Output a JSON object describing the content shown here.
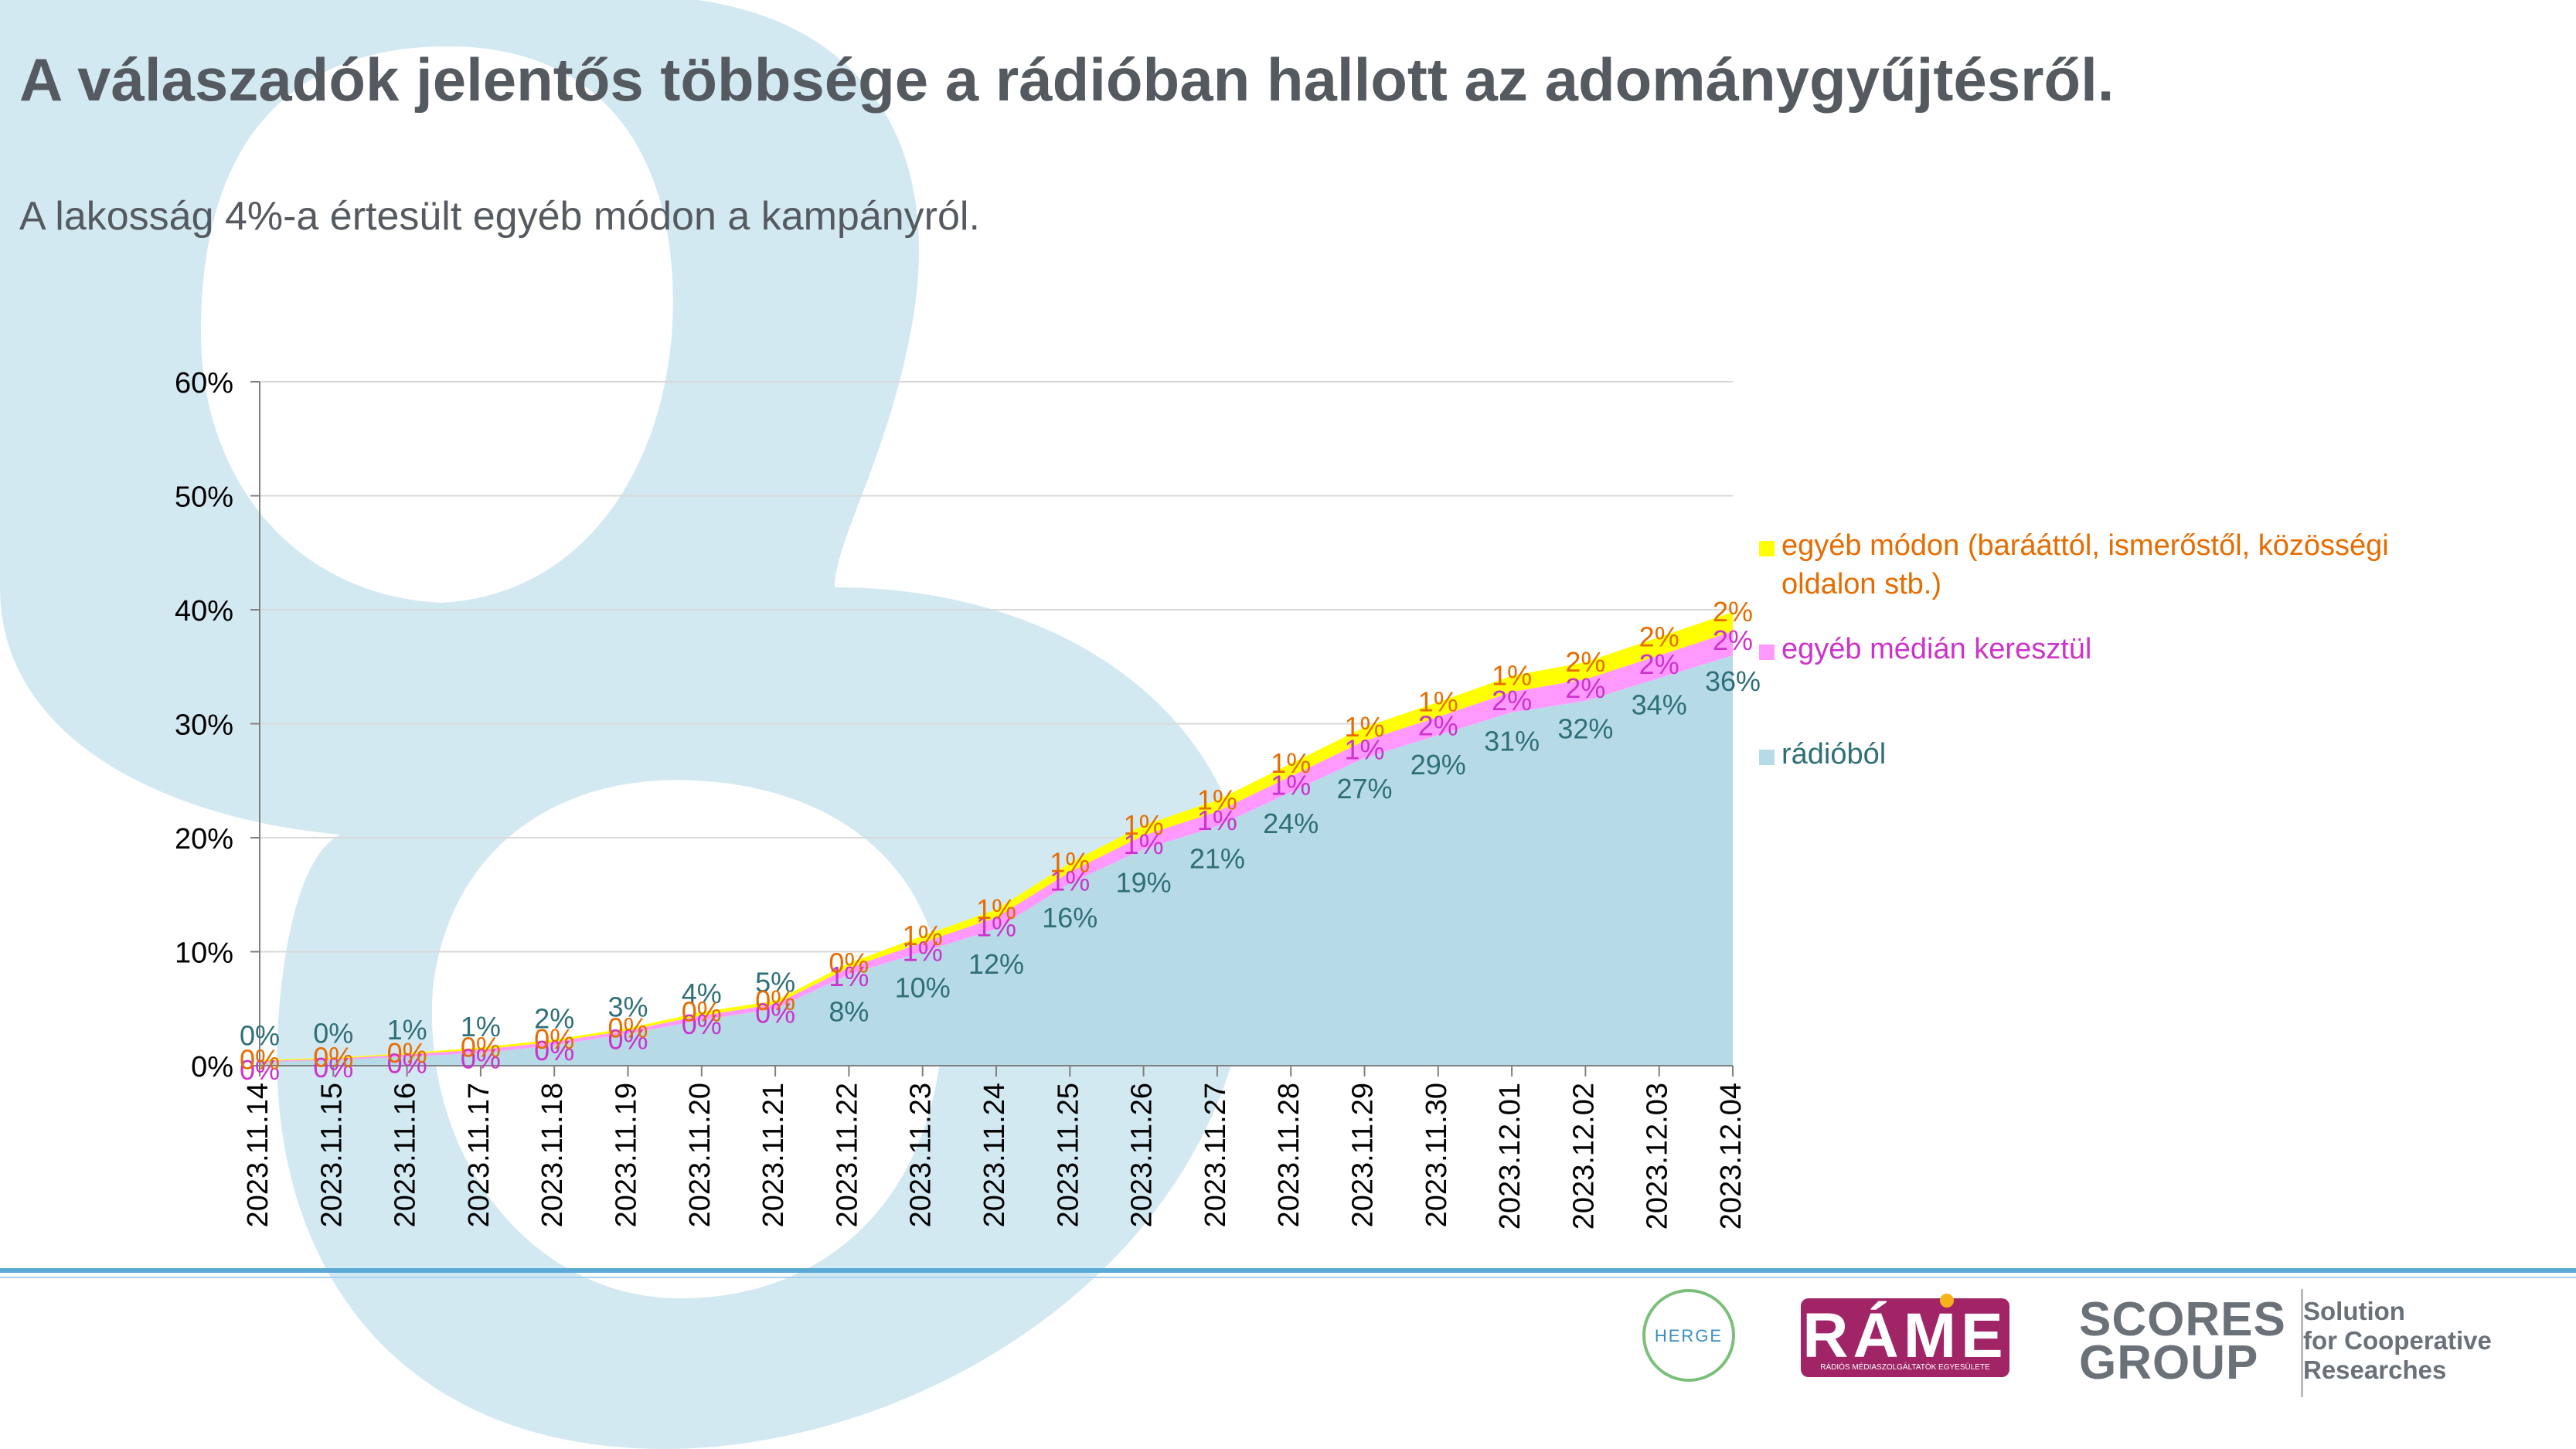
{
  "title": "A válaszadók jelentős többsége a rádióban hallott az adománygyűjtésről.",
  "subtitle": "A lakosság 4%-a értesült egyéb módon a kampányról.",
  "colors": {
    "radio": "#b6dbe6",
    "media": "#ff99ff",
    "other": "#ffff00",
    "bg_shape": "#d3e9f2",
    "grid": "#d9d9d9",
    "axis": "#7f7f7f",
    "radio_label": "#2f6f78",
    "media_label": "#cc33cc",
    "other_label": "#e66c00"
  },
  "chart_data": {
    "type": "area",
    "stacked": true,
    "x": [
      "2023.11.14",
      "2023.11.15",
      "2023.11.16",
      "2023.11.17",
      "2023.11.18",
      "2023.11.19",
      "2023.11.20",
      "2023.11.21",
      "2023.11.22",
      "2023.11.23",
      "2023.11.24",
      "2023.11.25",
      "2023.11.26",
      "2023.11.27",
      "2023.11.28",
      "2023.11.29",
      "2023.11.30",
      "2023.12.01",
      "2023.12.02",
      "2023.12.03",
      "2023.12.04"
    ],
    "y_ticks": [
      "0%",
      "10%",
      "20%",
      "30%",
      "40%",
      "50%",
      "60%"
    ],
    "ylim": [
      0,
      60
    ],
    "grid": true,
    "legend_position": "right",
    "series": [
      {
        "name": "rádióból",
        "key": "radio",
        "values": [
          0.3,
          0.5,
          0.8,
          1.1,
          1.8,
          2.8,
          4,
          5,
          8,
          10,
          12,
          16,
          19,
          21,
          24,
          27,
          29,
          31,
          32,
          34,
          36
        ],
        "labels": [
          "0%",
          "0%",
          "1%",
          "1%",
          "2%",
          "3%",
          "4%",
          "5%",
          "8%",
          "10%",
          "12%",
          "16%",
          "19%",
          "21%",
          "24%",
          "27%",
          "29%",
          "31%",
          "32%",
          "34%",
          "36%"
        ]
      },
      {
        "name": "egyéb médián keresztül",
        "key": "media",
        "values": [
          0.1,
          0.1,
          0.2,
          0.3,
          0.3,
          0.3,
          0.4,
          0.4,
          0.6,
          0.8,
          1,
          1,
          1.2,
          1.3,
          1.4,
          1.5,
          1.6,
          1.8,
          1.9,
          2,
          2.1
        ],
        "labels": [
          "0%",
          "0%",
          "0%",
          "0%",
          "0%",
          "0%",
          "0%",
          "0%",
          "1%",
          "1%",
          "1%",
          "1%",
          "1%",
          "1%",
          "1%",
          "1%",
          "2%",
          "2%",
          "2%",
          "2%",
          "2%"
        ]
      },
      {
        "name": "egyéb módon (barááttól, ismerőstől, közösségi oldalon stb.)",
        "key": "other",
        "values": [
          0.1,
          0.1,
          0.1,
          0.2,
          0.2,
          0.2,
          0.3,
          0.3,
          0.4,
          0.6,
          0.7,
          0.8,
          0.9,
          1,
          1.1,
          1.2,
          1.3,
          1.4,
          1.5,
          1.6,
          1.7
        ],
        "labels": [
          "0%",
          "0%",
          "0%",
          "0%",
          "0%",
          "0%",
          "0%",
          "0%",
          "0%",
          "1%",
          "1%",
          "1%",
          "1%",
          "1%",
          "1%",
          "1%",
          "1%",
          "1%",
          "2%",
          "2%",
          "2%"
        ]
      }
    ],
    "legend": [
      {
        "key": "other",
        "lines": [
          "egyéb módon (barááttól, ismerőstől, közösségi",
          "oldalon stb.)"
        ]
      },
      {
        "key": "media",
        "lines": [
          "egyéb médián keresztül"
        ]
      },
      {
        "key": "radio",
        "lines": [
          "rádióból"
        ]
      }
    ]
  },
  "logos": {
    "herge": "HERGE",
    "rame": "RÁME",
    "rame_sub": "RÁDIÓS MÉDIASZOLGÁLTATÓK EGYESÜLETE",
    "scores_line1": "SCORES",
    "scores_line2": "GROUP",
    "scores_tagline": [
      "Solution",
      "for Cooperative",
      "Researches"
    ]
  }
}
